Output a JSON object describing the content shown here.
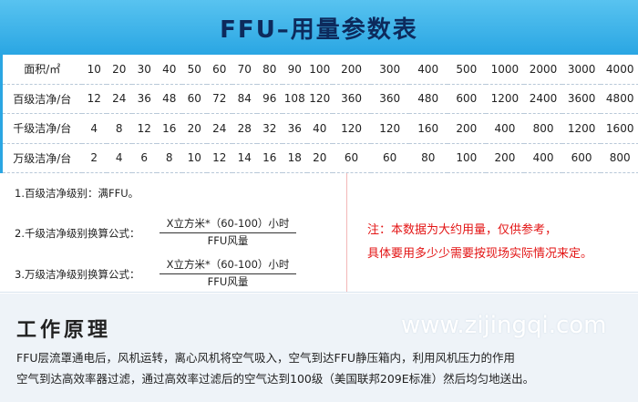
{
  "header": {
    "title": "FFU–用量参数表"
  },
  "table": {
    "rows": [
      [
        "面积/㎡",
        10,
        20,
        30,
        40,
        50,
        60,
        70,
        80,
        90,
        100,
        200,
        300,
        400,
        500,
        1000,
        2000,
        3000,
        4000
      ],
      [
        "百级洁净/台",
        12,
        24,
        36,
        48,
        60,
        72,
        84,
        96,
        108,
        120,
        360,
        360,
        480,
        600,
        1200,
        2400,
        3600,
        4800
      ],
      [
        "千级洁净/台",
        4,
        8,
        12,
        16,
        20,
        24,
        28,
        32,
        36,
        40,
        120,
        120,
        160,
        200,
        400,
        800,
        1200,
        1600
      ],
      [
        "万级洁净/台",
        2,
        4,
        6,
        8,
        10,
        12,
        14,
        16,
        18,
        20,
        60,
        60,
        80,
        100,
        200,
        400,
        600,
        800
      ]
    ]
  },
  "notes": {
    "item1": "1.百级洁净级别：满FFU。",
    "item2": {
      "label": "2.千级洁净级别换算公式：",
      "numerator": "X立方米*（60-100）小时",
      "denominator": "FFU风量"
    },
    "item3": {
      "label": "3.万级洁净级别换算公式：",
      "numerator": "X立方米*（60-100）小时",
      "denominator": "FFU风量"
    },
    "remark": [
      "注：本数据为大约用量，仅供参考，",
      "具体要用多少少需要按现场实际情况来定。"
    ]
  },
  "principle": {
    "title": "工作原理",
    "watermark": "www.zijingqi.com",
    "lines": [
      "FFU层流罩通电后，风机运转，离心风机将空气吸入，空气到达FFU静压箱内，利用风机压力的作用",
      "空气到达高效率器过滤，通过高效率过滤后的空气达到100级（美国联邦209E标准）然后均匀地送出。"
    ]
  }
}
